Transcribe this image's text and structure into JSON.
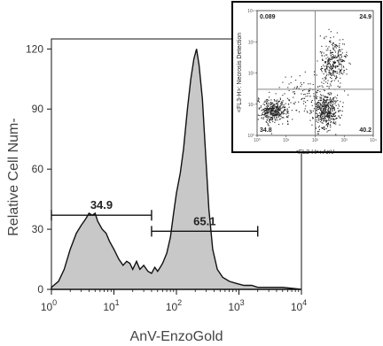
{
  "chart_data": [
    {
      "type": "area",
      "xlabel": "AnV-EnzoGold",
      "ylabel": "Relative Cell Num-",
      "xscale": "log",
      "xlim": [
        1,
        10000
      ],
      "ylim": [
        0,
        125
      ],
      "x_ticks": [
        {
          "value": 1,
          "base": "10",
          "exp": "0"
        },
        {
          "value": 10,
          "base": "10",
          "exp": "1"
        },
        {
          "value": 100,
          "base": "10",
          "exp": "2"
        },
        {
          "value": 1000,
          "base": "10",
          "exp": "3"
        },
        {
          "value": 10000,
          "base": "10",
          "exp": "4"
        }
      ],
      "y_ticks": [
        0,
        30,
        60,
        90,
        120
      ],
      "fill_color": "#c8c8c8",
      "line_color": "#111111",
      "x": [
        1,
        1.3,
        1.6,
        2,
        2.5,
        3,
        3.5,
        4,
        4.5,
        5,
        5.5,
        6.5,
        7.5,
        8.5,
        10,
        12,
        14,
        16,
        18,
        20,
        23,
        26,
        30,
        35,
        40,
        45,
        50,
        55,
        60,
        70,
        80,
        90,
        100,
        115,
        130,
        150,
        170,
        190,
        210,
        230,
        260,
        290,
        330,
        380,
        450,
        550,
        700,
        900,
        1200,
        1600,
        2000,
        3000,
        5000,
        10000
      ],
      "y": [
        1,
        4,
        10,
        20,
        28,
        32,
        35,
        38,
        37,
        38,
        34,
        30,
        28,
        24,
        20,
        15,
        12,
        14,
        13,
        10,
        14,
        10,
        12,
        9,
        8,
        11,
        9,
        11,
        13,
        18,
        26,
        38,
        48,
        58,
        70,
        90,
        105,
        115,
        120,
        112,
        95,
        70,
        40,
        20,
        10,
        6,
        4,
        3,
        2,
        2,
        1,
        1,
        1,
        0
      ],
      "gates": [
        {
          "label": "34.9",
          "x_start": 1,
          "x_end": 40,
          "y": 37
        },
        {
          "label": "65.1",
          "x_start": 40,
          "x_end": 2000,
          "y": 29
        }
      ]
    },
    {
      "type": "scatter",
      "xlabel": "<FL2-H>: AnV",
      "ylabel": "<FL3-H>: Necrosis Detection",
      "xscale": "log",
      "yscale": "log",
      "xlim": [
        1,
        10000
      ],
      "ylim": [
        1,
        10000
      ],
      "x_ticks": [
        "10⁰",
        "10¹",
        "10²",
        "10³",
        "10⁴"
      ],
      "y_ticks": [
        "10⁰",
        "10¹",
        "10²",
        "10³",
        "10⁴"
      ],
      "quadrant_divider": {
        "x": 100,
        "y": 30
      },
      "quadrants": {
        "top_left": "0.089",
        "top_right": "24.9",
        "bottom_left": "34.8",
        "bottom_right": "40.2"
      },
      "clusters": [
        {
          "center_log": [
            0.55,
            0.8
          ],
          "spread_log": [
            0.28,
            0.18
          ],
          "count": 420
        },
        {
          "center_log": [
            2.35,
            0.8
          ],
          "spread_log": [
            0.22,
            0.28
          ],
          "count": 460
        },
        {
          "center_log": [
            2.6,
            2.35
          ],
          "spread_log": [
            0.22,
            0.35
          ],
          "count": 320
        },
        {
          "center_log": [
            1.8,
            1.4
          ],
          "spread_log": [
            0.45,
            0.3
          ],
          "count": 120
        }
      ]
    }
  ]
}
